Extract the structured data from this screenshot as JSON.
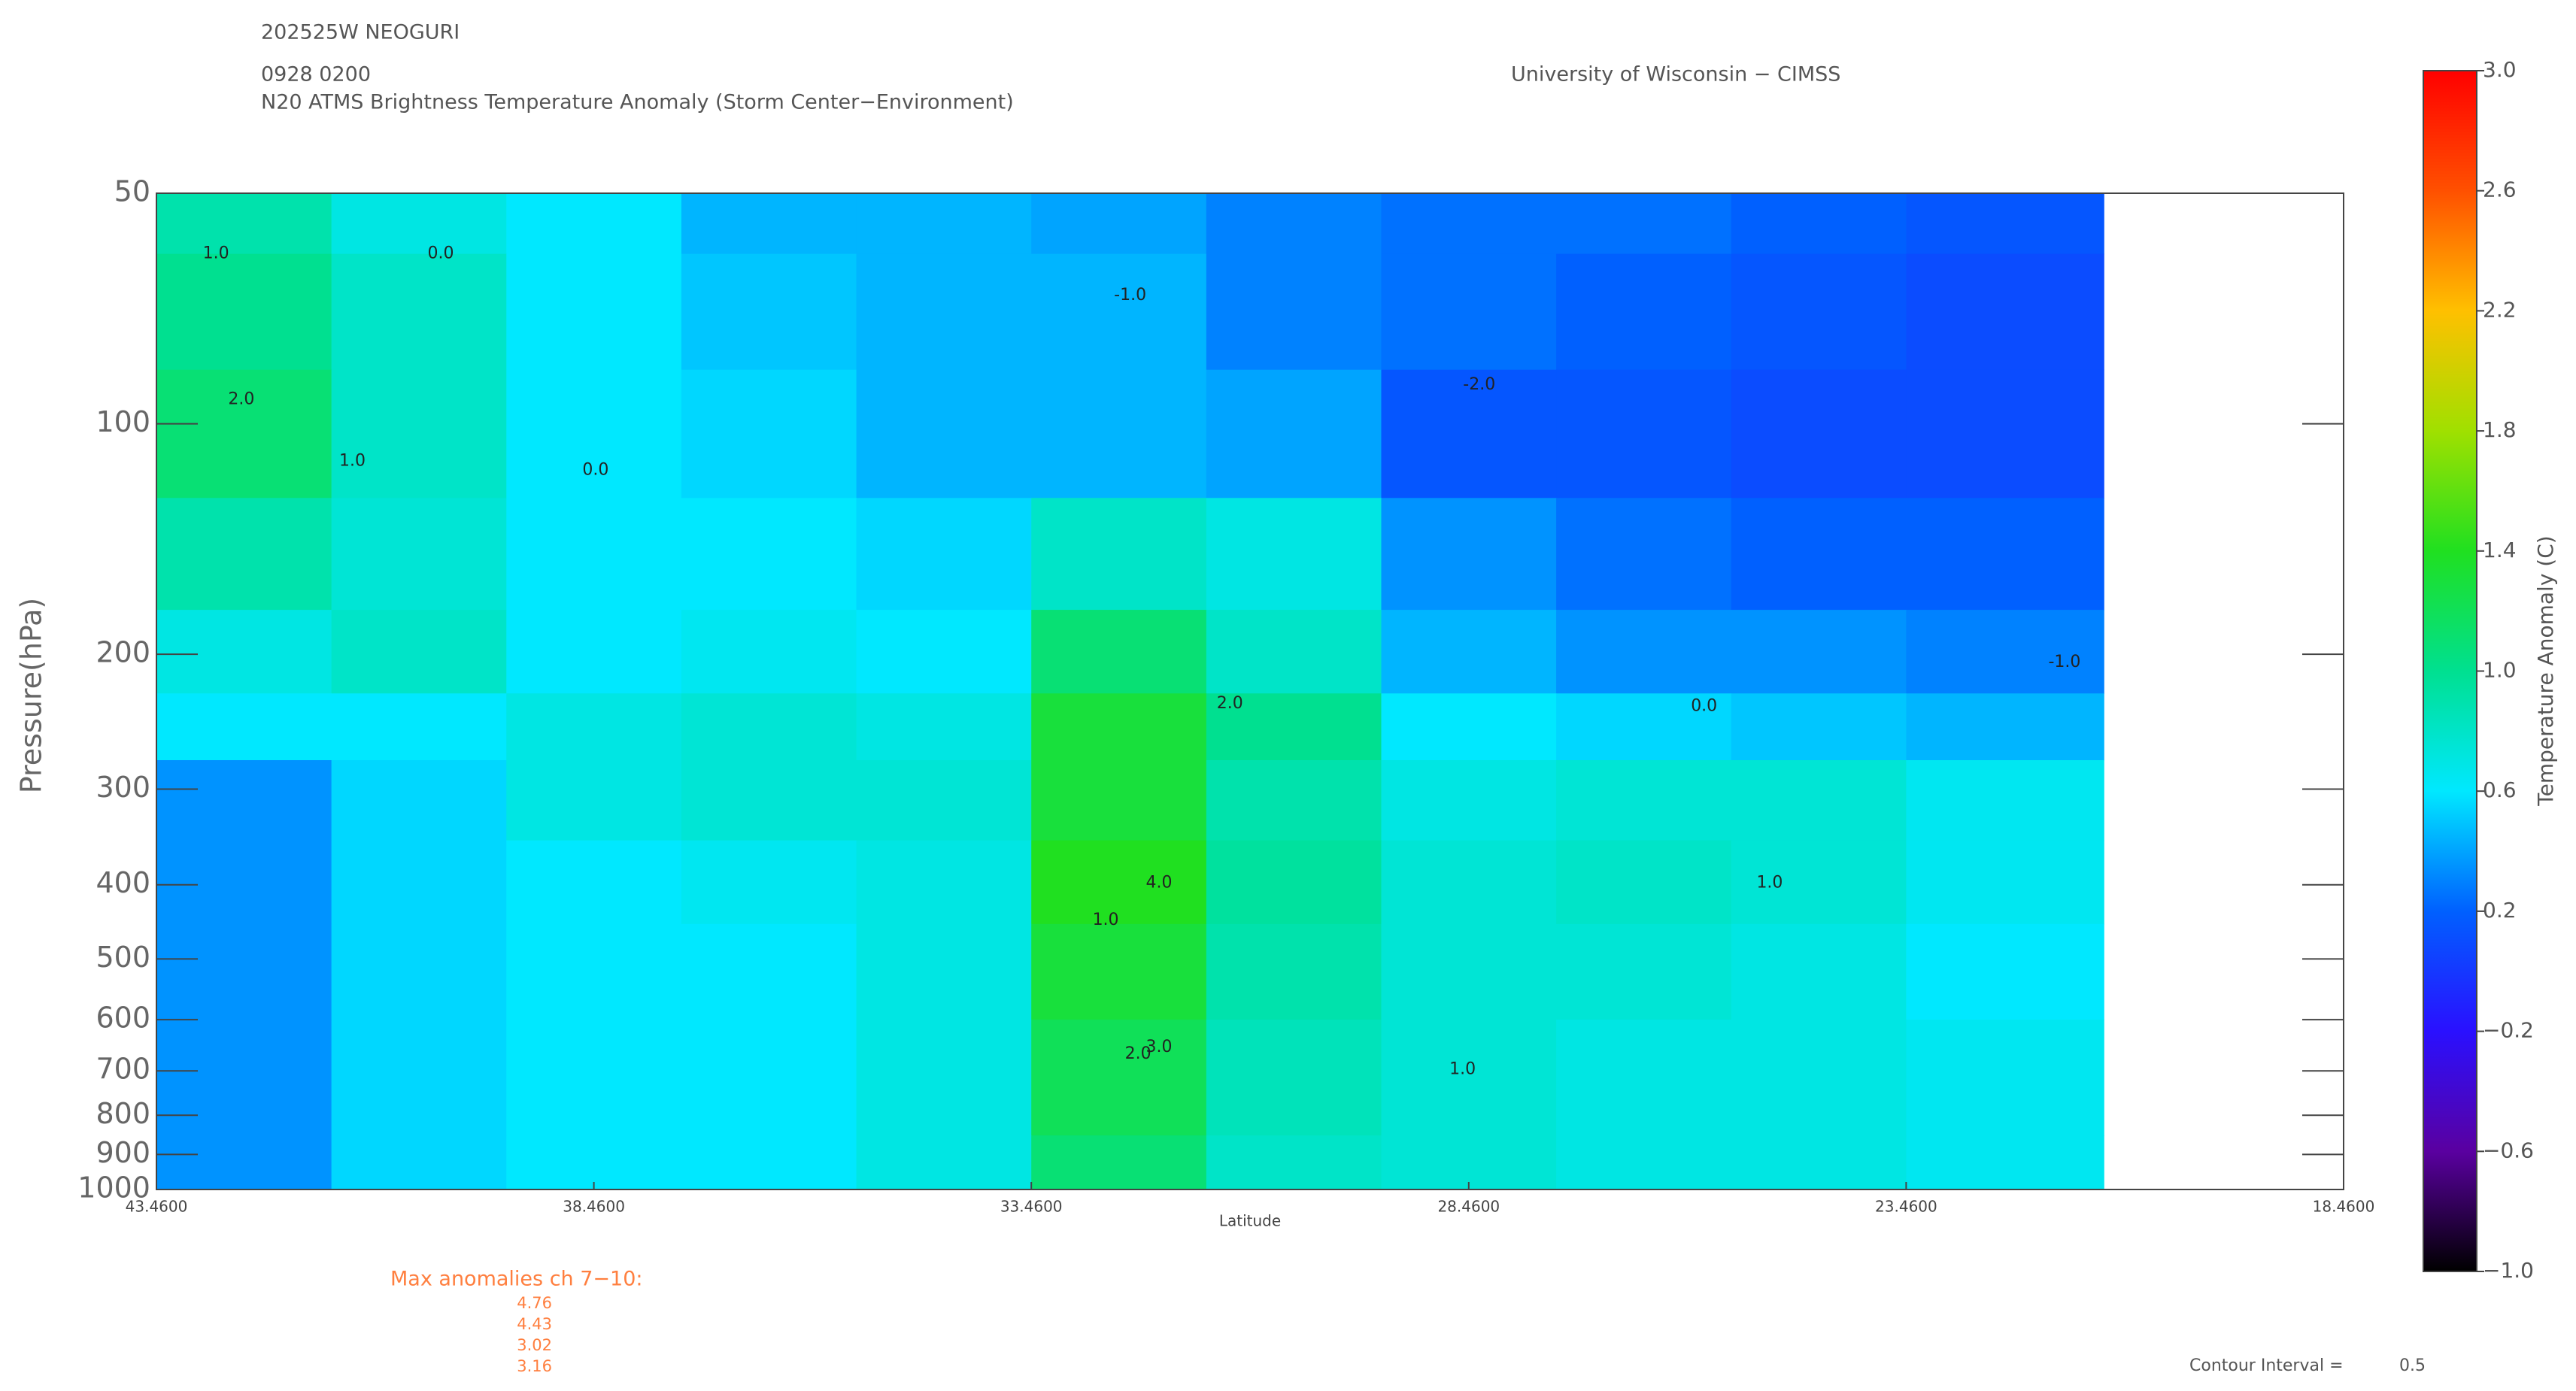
{
  "chart_data": {
    "type": "contour",
    "title": "202525W NEOGURI",
    "time": "0928 0200",
    "subtitle": "N20 ATMS Brightness Temperature Anomaly (Storm Center−Environment)",
    "credit": "University of Wisconsin − CIMSS",
    "x_label": "Latitude",
    "y_label": "Pressure(hPa)",
    "xlim": [
      43.46,
      18.46
    ],
    "xticks": [
      {
        "value": 43.46,
        "label": "43.4600"
      },
      {
        "value": 38.46,
        "label": "38.4600"
      },
      {
        "value": 33.46,
        "label": "33.4600"
      },
      {
        "value": 28.46,
        "label": "28.4600"
      },
      {
        "value": 23.46,
        "label": "23.4600"
      },
      {
        "value": 18.46,
        "label": "18.4600"
      }
    ],
    "ylim": [
      50,
      1000
    ],
    "y_log": true,
    "yticks": [
      50,
      100,
      200,
      300,
      400,
      500,
      600,
      700,
      800,
      900,
      1000
    ],
    "field": {
      "lat_edges": [
        43.46,
        41.46,
        39.46,
        37.46,
        35.46,
        33.46,
        31.46,
        29.46,
        27.46,
        25.46,
        23.46,
        21.2
      ],
      "pressure_edges": [
        50,
        60,
        85,
        125,
        175,
        225,
        275,
        350,
        450,
        600,
        850,
        1000
      ],
      "values": [
        [
          0.9,
          0.7,
          0.6,
          0.45,
          0.45,
          0.4,
          0.3,
          0.25,
          0.25,
          0.2,
          0.15
        ],
        [
          1.0,
          0.8,
          0.6,
          0.5,
          0.45,
          0.45,
          0.3,
          0.25,
          0.2,
          0.15,
          0.1
        ],
        [
          1.1,
          0.8,
          0.6,
          0.55,
          0.45,
          0.45,
          0.4,
          0.15,
          0.15,
          0.1,
          0.1
        ],
        [
          0.9,
          0.75,
          0.6,
          0.6,
          0.55,
          0.8,
          0.7,
          0.35,
          0.25,
          0.2,
          0.2
        ],
        [
          0.7,
          0.8,
          0.6,
          0.65,
          0.6,
          1.1,
          0.8,
          0.45,
          0.35,
          0.35,
          0.3
        ],
        [
          0.6,
          0.6,
          0.7,
          0.75,
          0.7,
          1.3,
          1.0,
          0.6,
          0.55,
          0.5,
          0.45
        ],
        [
          0.35,
          0.55,
          0.7,
          0.75,
          0.75,
          1.3,
          0.9,
          0.7,
          0.75,
          0.75,
          0.65
        ],
        [
          0.35,
          0.55,
          0.6,
          0.65,
          0.7,
          1.4,
          0.95,
          0.75,
          0.8,
          0.75,
          0.65
        ],
        [
          0.35,
          0.55,
          0.6,
          0.6,
          0.7,
          1.3,
          0.9,
          0.75,
          0.75,
          0.7,
          0.6
        ],
        [
          0.35,
          0.55,
          0.6,
          0.6,
          0.7,
          1.2,
          0.85,
          0.75,
          0.7,
          0.7,
          0.65
        ],
        [
          0.35,
          0.55,
          0.6,
          0.6,
          0.7,
          1.1,
          0.8,
          0.75,
          0.7,
          0.7,
          0.65
        ]
      ]
    },
    "contour_labels": [
      {
        "text": "0.0",
        "lat": 40.21,
        "pressure": 60
      },
      {
        "text": "1.0",
        "lat": 42.78,
        "pressure": 60
      },
      {
        "text": "2.0",
        "lat": 42.49,
        "pressure": 93
      },
      {
        "text": "1.0",
        "lat": 41.22,
        "pressure": 112
      },
      {
        "text": "0.0",
        "lat": 38.44,
        "pressure": 115
      },
      {
        "text": "-1.0",
        "lat": 32.33,
        "pressure": 68
      },
      {
        "text": "2.0",
        "lat": 31.19,
        "pressure": 232
      },
      {
        "text": "4.0",
        "lat": 32.0,
        "pressure": 398
      },
      {
        "text": "1.0",
        "lat": 32.61,
        "pressure": 445
      },
      {
        "text": "3.0",
        "lat": 32.0,
        "pressure": 652
      },
      {
        "text": "2.0",
        "lat": 32.24,
        "pressure": 666
      },
      {
        "text": "-2.0",
        "lat": 28.34,
        "pressure": 89
      },
      {
        "text": "0.0",
        "lat": 25.77,
        "pressure": 234
      },
      {
        "text": "1.0",
        "lat": 25.02,
        "pressure": 398
      },
      {
        "text": "-1.0",
        "lat": 21.65,
        "pressure": 205
      },
      {
        "text": "1.0",
        "lat": 28.53,
        "pressure": 697
      }
    ],
    "colorbar": {
      "label": "Temperature Anomaly (C)",
      "zlim": [
        -1.0,
        3.0
      ],
      "ticks": [
        {
          "value": -1.0,
          "label": "−1.0"
        },
        {
          "value": -0.6,
          "label": "−0.6"
        },
        {
          "value": -0.2,
          "label": "−0.2"
        },
        {
          "value": 0.2,
          "label": "0.2"
        },
        {
          "value": 0.6,
          "label": "0.6"
        },
        {
          "value": 1.0,
          "label": "1.0"
        },
        {
          "value": 1.4,
          "label": "1.4"
        },
        {
          "value": 1.8,
          "label": "1.8"
        },
        {
          "value": 2.2,
          "label": "2.2"
        },
        {
          "value": 2.6,
          "label": "2.6"
        },
        {
          "value": 3.0,
          "label": "3.0"
        }
      ],
      "colormap": [
        "#000000",
        "#5a00a0",
        "#2a10ff",
        "#0060ff",
        "#00e8ff",
        "#00e090",
        "#20e020",
        "#a0e000",
        "#ffc000",
        "#ff5000",
        "#ff0000"
      ]
    },
    "max_anomalies": {
      "title": "Max anomalies ch 7−10:",
      "values": [
        "4.76",
        "4.43",
        "3.02",
        "3.16"
      ]
    },
    "contour_interval": {
      "label": "Contour Interval =",
      "value": "0.5"
    }
  }
}
